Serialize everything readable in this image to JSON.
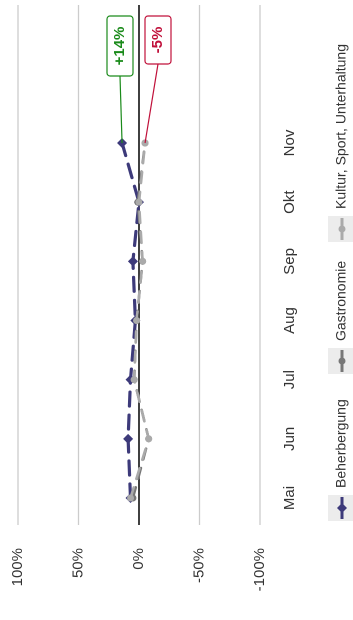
{
  "chart_data": {
    "type": "line",
    "orientation": "rotated-90-cw",
    "categories": [
      "Mai",
      "Jun",
      "Jul",
      "Aug",
      "Sep",
      "Okt",
      "Nov"
    ],
    "ylim": [
      -100,
      100
    ],
    "y_ticks": [
      100,
      50,
      0,
      -50,
      -100
    ],
    "y_tick_labels": [
      "100%",
      "50%",
      "0%",
      "-50%",
      "-100%"
    ],
    "grid": true,
    "legend_position": "bottom",
    "series": [
      {
        "name": "Beherbergung",
        "values": [
          7,
          9,
          7,
          3,
          5,
          0,
          14
        ],
        "color": "#3d3a7a"
      },
      {
        "name": "Gastronomie",
        "values": [
          5,
          -8,
          4,
          2,
          -3,
          1,
          -5
        ],
        "color": "#777777"
      },
      {
        "name": "Kultur, Sport, Unterhaltung",
        "values": [
          7,
          -8,
          4,
          2,
          -3,
          0,
          -5
        ],
        "color": "#aaaaaa"
      }
    ],
    "annotations": [
      {
        "text": "+14%",
        "series": "Beherbergung",
        "category": "Nov",
        "color": "#1a8a1a"
      },
      {
        "text": "-5%",
        "series": "Gastronomie",
        "category": "Nov",
        "color": "#c0103a"
      }
    ]
  }
}
